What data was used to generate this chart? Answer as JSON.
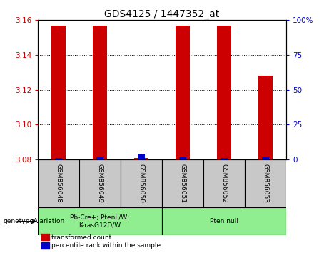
{
  "title": "GDS4125 / 1447352_at",
  "samples": [
    "GSM856048",
    "GSM856049",
    "GSM856050",
    "GSM856051",
    "GSM856052",
    "GSM856053"
  ],
  "red_values": [
    3.157,
    3.157,
    3.081,
    3.157,
    3.157,
    3.128
  ],
  "blue_values": [
    1.0,
    1.5,
    4.0,
    1.5,
    1.0,
    1.5
  ],
  "ymin": 3.08,
  "ymax": 3.16,
  "yticks_left": [
    3.08,
    3.1,
    3.12,
    3.14,
    3.16
  ],
  "yticks_right": [
    0,
    25,
    50,
    75,
    100
  ],
  "group_labels": [
    "Pb-Cre+; PtenL/W;\nK-rasG12D/W",
    "Pten null"
  ],
  "group_starts": [
    0,
    3
  ],
  "group_ends": [
    3,
    6
  ],
  "group_label_text": "genotype/variation",
  "bar_color": "#CC0000",
  "blue_color": "#0000CC",
  "left_axis_color": "#CC0000",
  "right_axis_color": "#0000CC",
  "legend_red": "transformed count",
  "legend_blue": "percentile rank within the sample",
  "background_label": "#C8C8C8",
  "green_color": "#90EE90",
  "bar_width": 0.35
}
